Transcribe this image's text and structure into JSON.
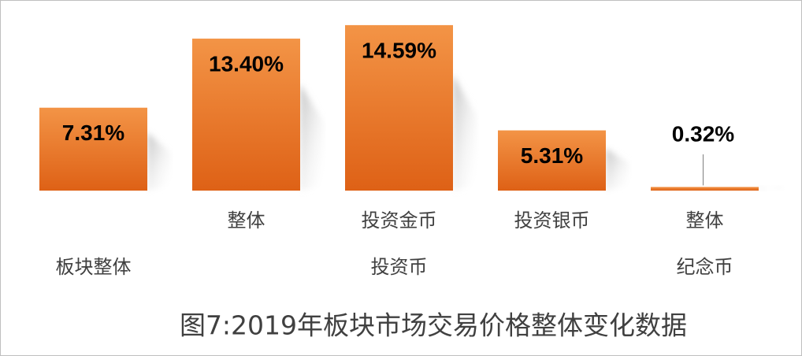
{
  "chart_data": {
    "type": "bar",
    "title": "图7:2019年板块市场交易价格整体变化数据",
    "categories": [
      null,
      "整体",
      "投资金币",
      "投资银币",
      "整体"
    ],
    "group_labels": [
      "板块整体",
      null,
      "投资币",
      null,
      "纪念币"
    ],
    "values": [
      7.31,
      13.4,
      14.59,
      5.31,
      0.32
    ],
    "value_labels": [
      "7.31%",
      "13.40%",
      "14.59%",
      "5.31%",
      "0.32%"
    ],
    "color": "#e8742a"
  }
}
